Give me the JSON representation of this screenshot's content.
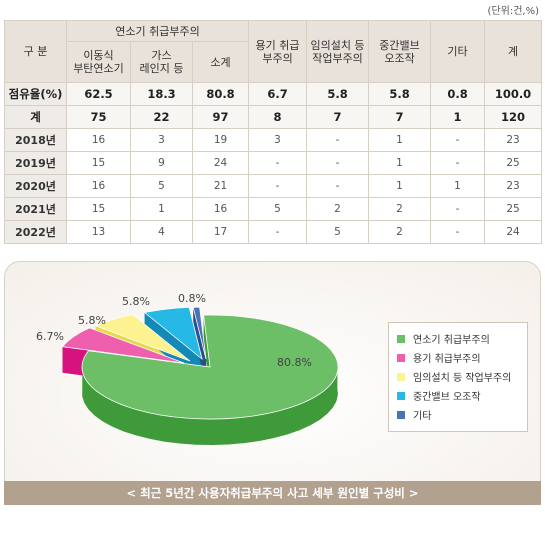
{
  "unit_label": "(단위:건,%)",
  "table": {
    "header": {
      "category": "구 분",
      "group_label": "연소기 취급부주의",
      "sub1": [
        "이동식",
        "부탄연소기"
      ],
      "sub2": [
        "가스",
        "레인지 등"
      ],
      "subtotal": "소계",
      "col_container": [
        "용기 취급",
        "부주의"
      ],
      "col_arbitrary": [
        "임의설치 등",
        "작업부주의"
      ],
      "col_valve": [
        "중간밸브",
        "오조작"
      ],
      "col_other": "기타",
      "col_total": "계"
    },
    "share_row": {
      "label": "점유율(%)",
      "values": [
        "62.5",
        "18.3",
        "80.8",
        "6.7",
        "5.8",
        "5.8",
        "0.8",
        "100.0"
      ]
    },
    "total_row": {
      "label": "계",
      "values": [
        "75",
        "22",
        "97",
        "8",
        "7",
        "7",
        "1",
        "120"
      ]
    },
    "years": [
      {
        "label": "2018년",
        "values": [
          "16",
          "3",
          "19",
          "3",
          "-",
          "1",
          "-",
          "23"
        ]
      },
      {
        "label": "2019년",
        "values": [
          "15",
          "9",
          "24",
          "-",
          "-",
          "1",
          "-",
          "25"
        ]
      },
      {
        "label": "2020년",
        "values": [
          "16",
          "5",
          "21",
          "-",
          "-",
          "1",
          "1",
          "23"
        ]
      },
      {
        "label": "2021년",
        "values": [
          "15",
          "1",
          "16",
          "5",
          "2",
          "2",
          "-",
          "25"
        ]
      },
      {
        "label": "2022년",
        "values": [
          "13",
          "4",
          "17",
          "-",
          "5",
          "2",
          "-",
          "24"
        ]
      }
    ]
  },
  "chart_data": {
    "type": "pie",
    "title": "< 최근 5년간 사용자취급부주의 사고 세부 원인별 구성비 >",
    "legend_placement": "right",
    "slices": [
      {
        "name": "연소기 취급부주의",
        "value": 80.8,
        "label": "80.8%",
        "color": "#6dbf67",
        "side": "#3f9a3a"
      },
      {
        "name": "용기 취급부주의",
        "value": 6.7,
        "label": "6.7%",
        "color": "#ee5fae",
        "side": "#d6127e"
      },
      {
        "name": "임의설치 등 작업부주의",
        "value": 5.8,
        "label": "5.8%",
        "color": "#fcf28f",
        "side": "#e8d84a"
      },
      {
        "name": "중간밸브 오조작",
        "value": 5.8,
        "label": "5.8%",
        "color": "#27b9e6",
        "side": "#1289b6"
      },
      {
        "name": "기타",
        "value": 0.8,
        "label": "0.8%",
        "color": "#4a72b8",
        "side": "#2b4f8e"
      }
    ]
  }
}
